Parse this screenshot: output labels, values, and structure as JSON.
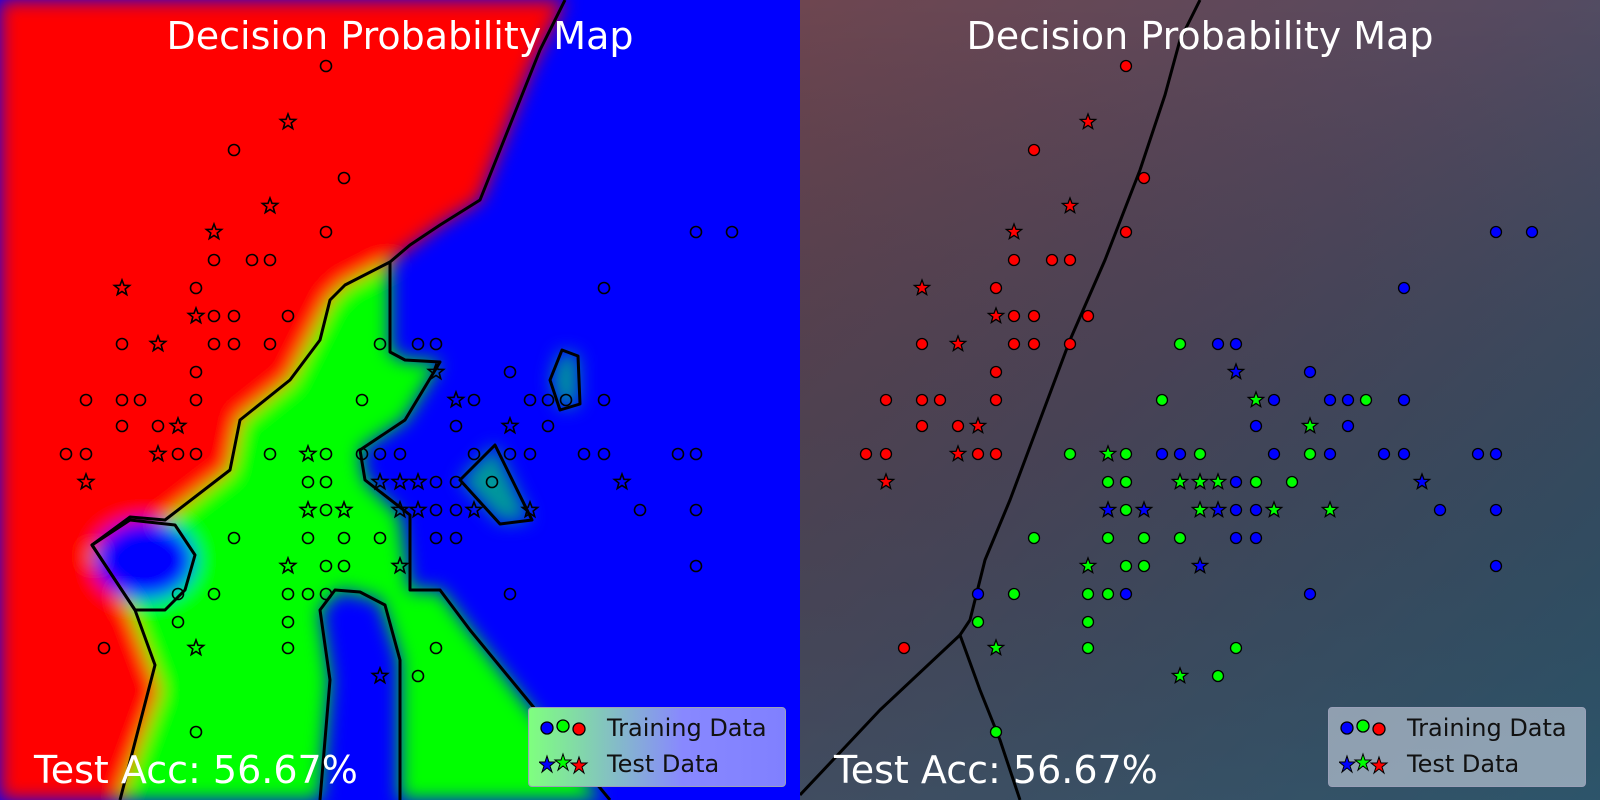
{
  "panels": [
    {
      "id": "left",
      "title": "Decision Probability Map",
      "accuracy_text": "Test Acc: 56.67%",
      "background_style": "saturated"
    },
    {
      "id": "right",
      "title": "Decision Probability Map",
      "accuracy_text": "Test Acc: 56.67%",
      "background_style": "muted"
    }
  ],
  "legend": {
    "training_label": "Training Data",
    "test_label": "Test Data",
    "placement": "bottom-right"
  },
  "colors": {
    "class_red": "#ff0000",
    "class_green": "#00ff00",
    "class_blue": "#0000ff",
    "muted_red": "#6e4650",
    "muted_blue": "#3a5870",
    "boundary": "#000000",
    "text": "#ffffff"
  },
  "chart_data": {
    "type": "scatter",
    "title": "Decision Probability Map",
    "xlim": [
      0,
      40
    ],
    "ylim": [
      0,
      40
    ],
    "grid": false,
    "classes": [
      "red",
      "green",
      "blue"
    ],
    "series": [
      {
        "name": "Training Data",
        "marker": "circle",
        "points": [
          {
            "x": 16.3,
            "y": 36.7,
            "c": "red"
          },
          {
            "x": 11.7,
            "y": 32.5,
            "c": "red"
          },
          {
            "x": 17.2,
            "y": 31.1,
            "c": "red"
          },
          {
            "x": 16.3,
            "y": 28.4,
            "c": "red"
          },
          {
            "x": 10.7,
            "y": 27.0,
            "c": "red"
          },
          {
            "x": 12.6,
            "y": 27.0,
            "c": "red"
          },
          {
            "x": 13.5,
            "y": 27.0,
            "c": "red"
          },
          {
            "x": 9.8,
            "y": 25.6,
            "c": "red"
          },
          {
            "x": 10.7,
            "y": 24.2,
            "c": "red"
          },
          {
            "x": 11.7,
            "y": 24.2,
            "c": "red"
          },
          {
            "x": 14.4,
            "y": 24.2,
            "c": "red"
          },
          {
            "x": 6.1,
            "y": 22.8,
            "c": "red"
          },
          {
            "x": 10.7,
            "y": 22.8,
            "c": "red"
          },
          {
            "x": 11.7,
            "y": 22.8,
            "c": "red"
          },
          {
            "x": 13.5,
            "y": 22.8,
            "c": "red"
          },
          {
            "x": 9.8,
            "y": 21.4,
            "c": "red"
          },
          {
            "x": 4.3,
            "y": 20.0,
            "c": "red"
          },
          {
            "x": 6.1,
            "y": 20.0,
            "c": "red"
          },
          {
            "x": 7.0,
            "y": 20.0,
            "c": "red"
          },
          {
            "x": 9.8,
            "y": 20.0,
            "c": "red"
          },
          {
            "x": 6.1,
            "y": 18.7,
            "c": "red"
          },
          {
            "x": 7.9,
            "y": 18.7,
            "c": "red"
          },
          {
            "x": 3.3,
            "y": 17.3,
            "c": "red"
          },
          {
            "x": 4.3,
            "y": 17.3,
            "c": "red"
          },
          {
            "x": 8.9,
            "y": 17.3,
            "c": "red"
          },
          {
            "x": 9.8,
            "y": 17.3,
            "c": "red"
          },
          {
            "x": 5.2,
            "y": 7.6,
            "c": "red"
          },
          {
            "x": 19.0,
            "y": 22.8,
            "c": "green"
          },
          {
            "x": 18.1,
            "y": 20.0,
            "c": "green"
          },
          {
            "x": 13.5,
            "y": 17.3,
            "c": "green"
          },
          {
            "x": 16.3,
            "y": 17.3,
            "c": "green"
          },
          {
            "x": 20.0,
            "y": 17.3,
            "c": "green"
          },
          {
            "x": 15.4,
            "y": 15.9,
            "c": "green"
          },
          {
            "x": 16.3,
            "y": 15.9,
            "c": "green"
          },
          {
            "x": 22.8,
            "y": 15.9,
            "c": "green"
          },
          {
            "x": 16.3,
            "y": 14.5,
            "c": "green"
          },
          {
            "x": 11.7,
            "y": 13.1,
            "c": "green"
          },
          {
            "x": 15.4,
            "y": 13.1,
            "c": "green"
          },
          {
            "x": 17.2,
            "y": 13.1,
            "c": "green"
          },
          {
            "x": 19.0,
            "y": 13.1,
            "c": "green"
          },
          {
            "x": 16.3,
            "y": 11.7,
            "c": "green"
          },
          {
            "x": 17.2,
            "y": 11.7,
            "c": "green"
          },
          {
            "x": 10.7,
            "y": 10.3,
            "c": "green"
          },
          {
            "x": 14.4,
            "y": 10.3,
            "c": "green"
          },
          {
            "x": 15.4,
            "y": 10.3,
            "c": "green"
          },
          {
            "x": 8.9,
            "y": 8.9,
            "c": "green"
          },
          {
            "x": 14.4,
            "y": 8.9,
            "c": "green"
          },
          {
            "x": 14.4,
            "y": 7.6,
            "c": "green"
          },
          {
            "x": 21.8,
            "y": 7.6,
            "c": "green"
          },
          {
            "x": 20.9,
            "y": 6.2,
            "c": "green"
          },
          {
            "x": 9.8,
            "y": 3.4,
            "c": "green"
          },
          {
            "x": 24.6,
            "y": 15.9,
            "c": "green"
          },
          {
            "x": 25.5,
            "y": 17.3,
            "c": "green"
          },
          {
            "x": 28.3,
            "y": 20.0,
            "c": "green"
          },
          {
            "x": 20.9,
            "y": 22.8,
            "c": "blue"
          },
          {
            "x": 21.8,
            "y": 22.8,
            "c": "blue"
          },
          {
            "x": 25.5,
            "y": 21.4,
            "c": "blue"
          },
          {
            "x": 30.2,
            "y": 25.6,
            "c": "blue"
          },
          {
            "x": 34.8,
            "y": 28.4,
            "c": "blue"
          },
          {
            "x": 36.6,
            "y": 28.4,
            "c": "blue"
          },
          {
            "x": 23.7,
            "y": 20.0,
            "c": "blue"
          },
          {
            "x": 26.5,
            "y": 20.0,
            "c": "blue"
          },
          {
            "x": 27.4,
            "y": 20.0,
            "c": "blue"
          },
          {
            "x": 30.2,
            "y": 20.0,
            "c": "blue"
          },
          {
            "x": 22.8,
            "y": 18.7,
            "c": "blue"
          },
          {
            "x": 27.4,
            "y": 18.7,
            "c": "blue"
          },
          {
            "x": 18.1,
            "y": 17.3,
            "c": "blue"
          },
          {
            "x": 19.0,
            "y": 17.3,
            "c": "blue"
          },
          {
            "x": 23.7,
            "y": 17.3,
            "c": "blue"
          },
          {
            "x": 26.5,
            "y": 17.3,
            "c": "blue"
          },
          {
            "x": 29.2,
            "y": 17.3,
            "c": "blue"
          },
          {
            "x": 30.2,
            "y": 17.3,
            "c": "blue"
          },
          {
            "x": 33.9,
            "y": 17.3,
            "c": "blue"
          },
          {
            "x": 34.8,
            "y": 17.3,
            "c": "blue"
          },
          {
            "x": 21.8,
            "y": 15.9,
            "c": "blue"
          },
          {
            "x": 21.8,
            "y": 14.5,
            "c": "blue"
          },
          {
            "x": 22.8,
            "y": 14.5,
            "c": "blue"
          },
          {
            "x": 32.0,
            "y": 14.5,
            "c": "blue"
          },
          {
            "x": 34.8,
            "y": 14.5,
            "c": "blue"
          },
          {
            "x": 21.8,
            "y": 13.1,
            "c": "blue"
          },
          {
            "x": 22.8,
            "y": 13.1,
            "c": "blue"
          },
          {
            "x": 34.8,
            "y": 11.7,
            "c": "blue"
          },
          {
            "x": 8.9,
            "y": 10.3,
            "c": "blue"
          },
          {
            "x": 16.3,
            "y": 10.3,
            "c": "blue"
          },
          {
            "x": 25.5,
            "y": 10.3,
            "c": "blue"
          }
        ]
      },
      {
        "name": "Test Data",
        "marker": "star",
        "points": [
          {
            "x": 14.4,
            "y": 33.9,
            "c": "red"
          },
          {
            "x": 13.5,
            "y": 29.7,
            "c": "red"
          },
          {
            "x": 10.7,
            "y": 28.4,
            "c": "red"
          },
          {
            "x": 6.1,
            "y": 25.6,
            "c": "red"
          },
          {
            "x": 9.8,
            "y": 24.2,
            "c": "red"
          },
          {
            "x": 7.9,
            "y": 22.8,
            "c": "red"
          },
          {
            "x": 8.9,
            "y": 18.7,
            "c": "red"
          },
          {
            "x": 7.9,
            "y": 17.3,
            "c": "red"
          },
          {
            "x": 4.3,
            "y": 15.9,
            "c": "red"
          },
          {
            "x": 22.8,
            "y": 20.0,
            "c": "green"
          },
          {
            "x": 15.4,
            "y": 17.3,
            "c": "green"
          },
          {
            "x": 25.5,
            "y": 18.7,
            "c": "green"
          },
          {
            "x": 19.0,
            "y": 15.9,
            "c": "green"
          },
          {
            "x": 20.0,
            "y": 15.9,
            "c": "green"
          },
          {
            "x": 20.9,
            "y": 15.9,
            "c": "green"
          },
          {
            "x": 20.0,
            "y": 14.5,
            "c": "green"
          },
          {
            "x": 23.7,
            "y": 14.5,
            "c": "green"
          },
          {
            "x": 26.5,
            "y": 14.5,
            "c": "green"
          },
          {
            "x": 14.4,
            "y": 11.7,
            "c": "green"
          },
          {
            "x": 9.8,
            "y": 7.6,
            "c": "green"
          },
          {
            "x": 19.0,
            "y": 6.2,
            "c": "green"
          },
          {
            "x": 21.8,
            "y": 21.4,
            "c": "blue"
          },
          {
            "x": 15.4,
            "y": 14.5,
            "c": "blue"
          },
          {
            "x": 17.2,
            "y": 14.5,
            "c": "blue"
          },
          {
            "x": 20.9,
            "y": 14.5,
            "c": "blue"
          },
          {
            "x": 31.1,
            "y": 15.9,
            "c": "blue"
          },
          {
            "x": 20.0,
            "y": 11.7,
            "c": "blue"
          }
        ]
      }
    ]
  }
}
